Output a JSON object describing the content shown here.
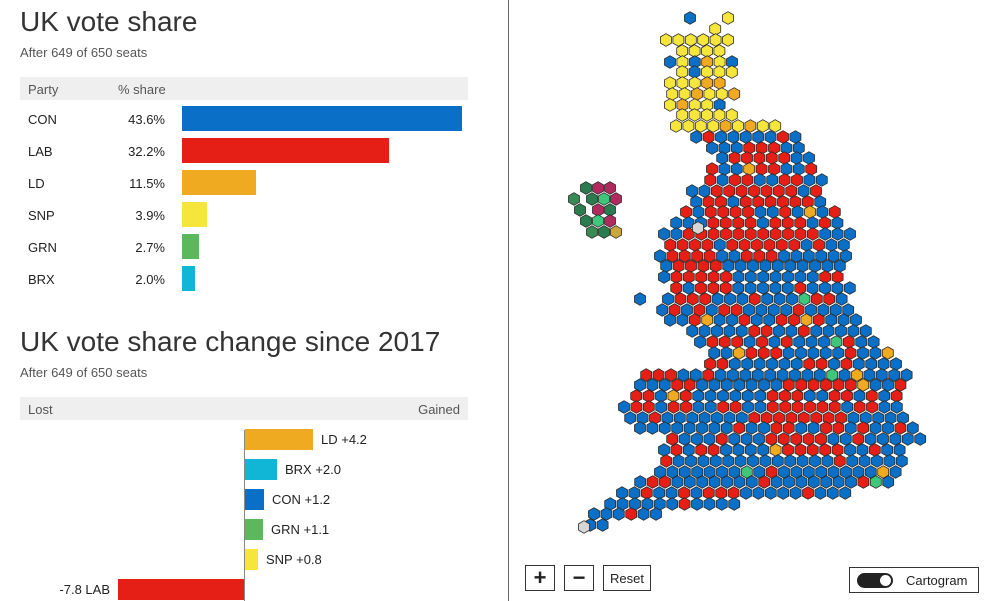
{
  "share_panel": {
    "title": "UK vote share",
    "subtitle": "After 649 of 650 seats",
    "col_party": "Party",
    "col_share": "% share"
  },
  "change_panel": {
    "title": "UK vote share change since 2017",
    "subtitle": "After 649 of 650 seats",
    "col_lost": "Lost",
    "col_gained": "Gained"
  },
  "map_controls": {
    "zoom_in": "+",
    "zoom_out": "−",
    "reset": "Reset",
    "toggle_label": "Cartogram",
    "toggle_on": true
  },
  "colors": {
    "CON": "#0a6fc6",
    "LAB": "#e51f16",
    "LD": "#efaa22",
    "SNP": "#f6e63c",
    "GRN": "#5cb85c",
    "BRX": "#11b6d6",
    "PC": "#3ec77a",
    "SF": "#2a7b4d",
    "DUP": "#b02a5e",
    "OTHER": "#d6d6d6"
  },
  "chart_data": [
    {
      "type": "bar",
      "orientation": "horizontal",
      "title": "UK vote share",
      "categories": [
        "CON",
        "LAB",
        "LD",
        "SNP",
        "GRN",
        "BRX"
      ],
      "values": [
        43.6,
        32.2,
        11.5,
        3.9,
        2.7,
        2.0
      ],
      "value_labels": [
        "43.6%",
        "32.2%",
        "11.5%",
        "3.9%",
        "2.7%",
        "2.0%"
      ],
      "xlim": [
        0,
        43.6
      ]
    },
    {
      "type": "bar",
      "orientation": "horizontal",
      "title": "UK vote share change since 2017",
      "categories": [
        "LD",
        "BRX",
        "CON",
        "GRN",
        "SNP",
        "LAB"
      ],
      "values": [
        4.2,
        2.0,
        1.2,
        1.1,
        0.8,
        -7.8
      ],
      "value_labels": [
        "+4.2",
        "+2.0",
        "+1.2",
        "+1.1",
        "+0.8",
        "-7.8"
      ]
    }
  ]
}
